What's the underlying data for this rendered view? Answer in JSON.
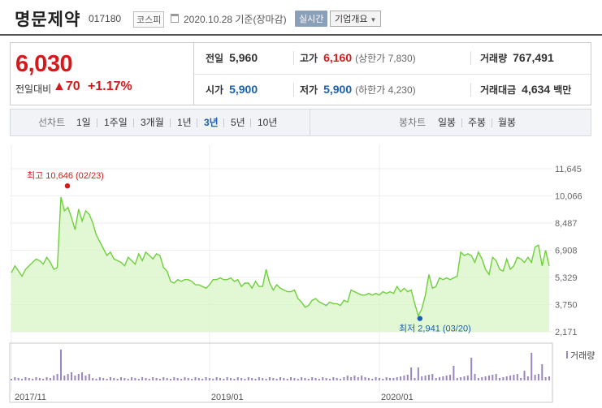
{
  "header": {
    "company_name": "명문제약",
    "company_code": "017180",
    "market_badge": "코스피",
    "date_text": "2020.10.28 기준(장마감)",
    "realtime_label": "실시간",
    "company_info_label": "기업개요"
  },
  "price": {
    "current": "6,030",
    "change_label": "전일대비",
    "change_value": "▲70",
    "change_pct": "+1.17%"
  },
  "stats": {
    "prev_close_label": "전일",
    "prev_close": "5,960",
    "high_label": "고가",
    "high": "6,160",
    "upper_limit": "(상한가 7,830)",
    "volume_label": "거래량",
    "volume": "767,491",
    "open_label": "시가",
    "open": "5,900",
    "low_label": "저가",
    "low": "5,900",
    "lower_limit": "(하한가 4,230)",
    "trade_value_label": "거래대금",
    "trade_value": "4,634",
    "trade_value_unit": "백만"
  },
  "toolbar": {
    "line_chart_label": "선차트",
    "periods": [
      "1일",
      "1주일",
      "3개월",
      "1년",
      "3년",
      "5년",
      "10년"
    ],
    "selected_period": "3년",
    "candle_chart_label": "봉차트",
    "candle_periods": [
      "일봉",
      "주봉",
      "월봉"
    ]
  },
  "chart_data": {
    "type": "area",
    "ylim": [
      2171,
      11645
    ],
    "y_ticks": [
      "11,645",
      "10,066",
      "8,487",
      "6,908",
      "5,329",
      "3,750",
      "2,171"
    ],
    "y_tick_values": [
      11645,
      10066,
      8487,
      6908,
      5329,
      3750,
      2171
    ],
    "x_ticks": [
      "2017/11",
      "2019/01",
      "2020/01"
    ],
    "x_tick_index": [
      0,
      56,
      104
    ],
    "annotations": {
      "high_label": "최고 10,646 (02/23)",
      "high_value": 10646,
      "high_index": 14,
      "low_label": "최저 2,941 (03/20)",
      "low_value": 2941,
      "low_index": 115
    },
    "volume_legend": "거래량",
    "series_color": "#6fcf3c",
    "fill_color": "#d8f5c6",
    "values": [
      5600,
      6000,
      5700,
      5400,
      5800,
      6000,
      6200,
      6400,
      6300,
      6100,
      6500,
      6200,
      5800,
      5900,
      10000,
      9200,
      9400,
      8800,
      8100,
      9300,
      8600,
      9200,
      9000,
      8500,
      7800,
      7400,
      7000,
      6600,
      6800,
      6400,
      6300,
      6200,
      6000,
      6500,
      6300,
      6100,
      6700,
      6300,
      6800,
      6600,
      6400,
      6700,
      6600,
      5900,
      5700,
      5100,
      5000,
      5200,
      5100,
      5200,
      5200,
      5100,
      4900,
      4900,
      4800,
      4700,
      4900,
      5200,
      5200,
      5300,
      5200,
      5200,
      5300,
      5100,
      5200,
      4800,
      5000,
      5000,
      4700,
      5100,
      4800,
      4800,
      5800,
      5000,
      4600,
      4900,
      4700,
      4600,
      4500,
      4500,
      4600,
      4100,
      3900,
      3600,
      3700,
      4000,
      4100,
      3900,
      3800,
      3700,
      3900,
      3800,
      3800,
      3700,
      4000,
      3900,
      4600,
      4500,
      4400,
      4300,
      4300,
      4400,
      4300,
      4400,
      4300,
      4500,
      4400,
      4500,
      4400,
      4800,
      4500,
      4700,
      4500,
      4600,
      3800,
      3100,
      3500,
      4300,
      5500,
      4700,
      4800,
      5300,
      5200,
      5300,
      5200,
      5300,
      5400,
      6800,
      6600,
      6700,
      6600,
      6200,
      6800,
      6400,
      5800,
      5500,
      6500,
      6300,
      5800,
      5700,
      6400,
      5800,
      6000,
      6500,
      6400,
      6200,
      6500,
      6200,
      7100,
      7200,
      6000,
      6900,
      6000
    ]
  }
}
